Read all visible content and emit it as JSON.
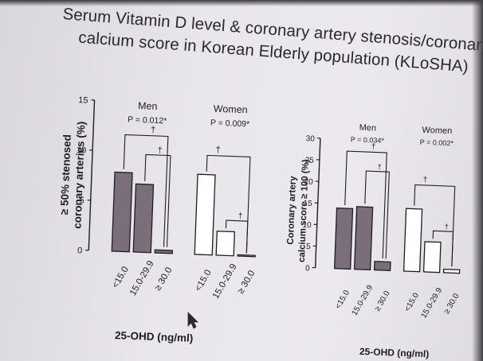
{
  "slide": {
    "title_lines": [
      "Serum Vitamin D level & coronary artery stenosis/coronary",
      "calcium score in Korean Elderly population (KLoSHA)"
    ]
  },
  "colors": {
    "men_bar": "#7a6e7a",
    "women_bar": "#ffffff",
    "ink": "#1e1e22"
  },
  "chart_data": [
    {
      "type": "bar",
      "ylabel": [
        "≥ 50% stenosed",
        "coronary arteries (%)"
      ],
      "xlabel": "25-OHD (ng/ml)",
      "ylim": [
        0,
        15
      ],
      "yticks": [
        "0",
        "5",
        "10",
        "15"
      ],
      "categories": [
        "<15.0",
        "15.0-29.9",
        "≥ 30.0"
      ],
      "significance_marker": "†",
      "groups": [
        {
          "name": "Men",
          "p_value": "P = 0.012*",
          "values": [
            7.9,
            6.8,
            0.3
          ]
        },
        {
          "name": "Women",
          "p_value": "P = 0.009*",
          "values": [
            8.0,
            2.4,
            0
          ]
        }
      ]
    },
    {
      "type": "bar",
      "ylabel": [
        "Coronary artery",
        "calcium score ≥ 100 (%)"
      ],
      "xlabel": "25-OHD (ng/ml)",
      "ylim": [
        0,
        30
      ],
      "yticks": [
        "0",
        "5",
        "10",
        "15",
        "20",
        "25",
        "30"
      ],
      "categories": [
        "<15.0",
        "15.0-29.9",
        "≥ 30.0"
      ],
      "significance_marker": "†",
      "groups": [
        {
          "name": "Men",
          "p_value": "P = 0.034*",
          "values": [
            14.0,
            14.5,
            2.0
          ]
        },
        {
          "name": "Women",
          "p_value": "P = 0.002*",
          "values": [
            14.5,
            7.0,
            0.8
          ]
        }
      ]
    }
  ]
}
